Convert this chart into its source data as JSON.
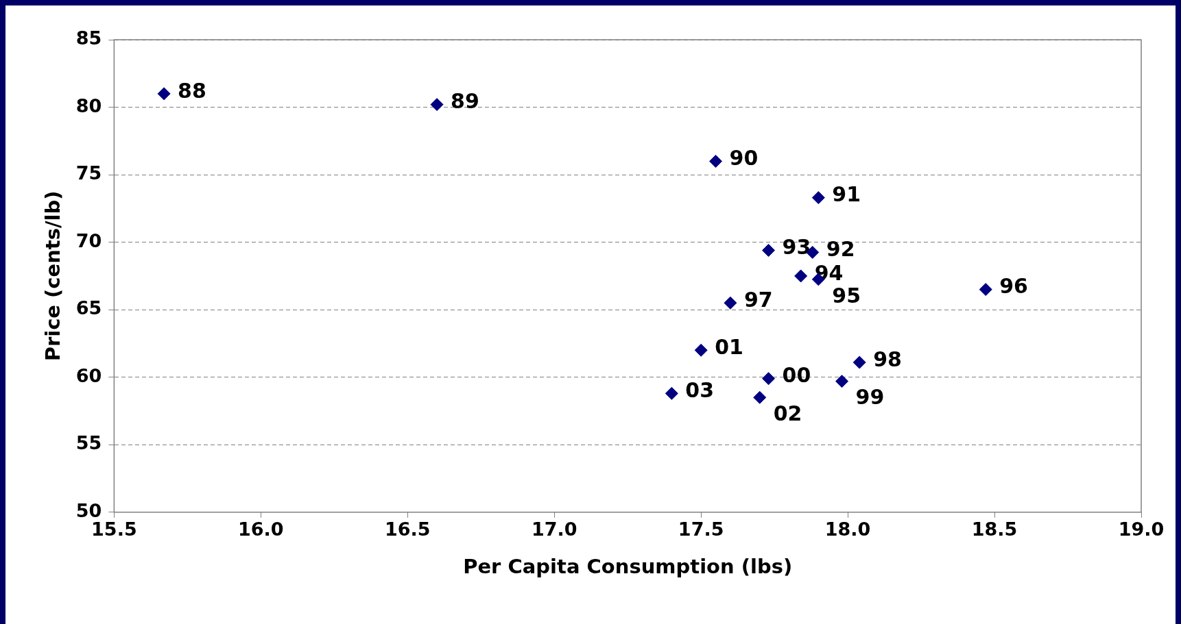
{
  "chart_data": {
    "type": "scatter",
    "xlabel": "Per Capita Consumption (lbs)",
    "ylabel": "Price (cents/lb)",
    "x": [
      15.67,
      16.6,
      17.55,
      17.9,
      17.88,
      17.73,
      17.84,
      17.9,
      18.47,
      17.6,
      18.04,
      17.98,
      17.73,
      17.5,
      17.7,
      17.4
    ],
    "series": [
      {
        "color": "#000080",
        "values": [
          81.0,
          80.2,
          76.0,
          73.3,
          69.25,
          69.4,
          67.5,
          67.25,
          66.5,
          65.5,
          61.1,
          59.7,
          59.9,
          62.0,
          58.5,
          58.8
        ]
      }
    ],
    "annotations": [
      {
        "text": "88",
        "x": 15.67,
        "y": 81.0
      },
      {
        "text": "89",
        "x": 16.6,
        "y": 80.2
      },
      {
        "text": "90",
        "x": 17.55,
        "y": 76.0
      },
      {
        "text": "91",
        "x": 17.9,
        "y": 73.3
      },
      {
        "text": "92",
        "x": 17.88,
        "y": 69.25
      },
      {
        "text": "93",
        "x": 17.73,
        "y": 69.4
      },
      {
        "text": "94",
        "x": 17.84,
        "y": 67.5
      },
      {
        "text": "95",
        "x": 17.9,
        "y": 67.25
      },
      {
        "text": "96",
        "x": 18.47,
        "y": 66.5
      },
      {
        "text": "97",
        "x": 17.6,
        "y": 65.5
      },
      {
        "text": "98",
        "x": 18.04,
        "y": 61.1
      },
      {
        "text": "99",
        "x": 17.98,
        "y": 59.7
      },
      {
        "text": "00",
        "x": 17.73,
        "y": 59.9
      },
      {
        "text": "01",
        "x": 17.5,
        "y": 62.0
      },
      {
        "text": "02",
        "x": 17.7,
        "y": 58.5
      },
      {
        "text": "03",
        "x": 17.4,
        "y": 58.8
      }
    ],
    "xlim": [
      15.5,
      19.0
    ],
    "xticks": [
      {
        "value": 15.5,
        "label": "15.5"
      },
      {
        "value": 16,
        "label": "16.0"
      },
      {
        "value": 16.5,
        "label": "16.5"
      },
      {
        "value": 17,
        "label": "17.0"
      },
      {
        "value": 17.5,
        "label": "17.5"
      },
      {
        "value": 18,
        "label": "18.0"
      },
      {
        "value": 18.5,
        "label": "18.5"
      },
      {
        "value": 19,
        "label": "19.0"
      }
    ],
    "ylim": [
      50,
      85
    ],
    "yticks": [
      50,
      55,
      60,
      65,
      70,
      75,
      80,
      85
    ],
    "grid": "y",
    "marker": "diamond",
    "legend": false
  }
}
